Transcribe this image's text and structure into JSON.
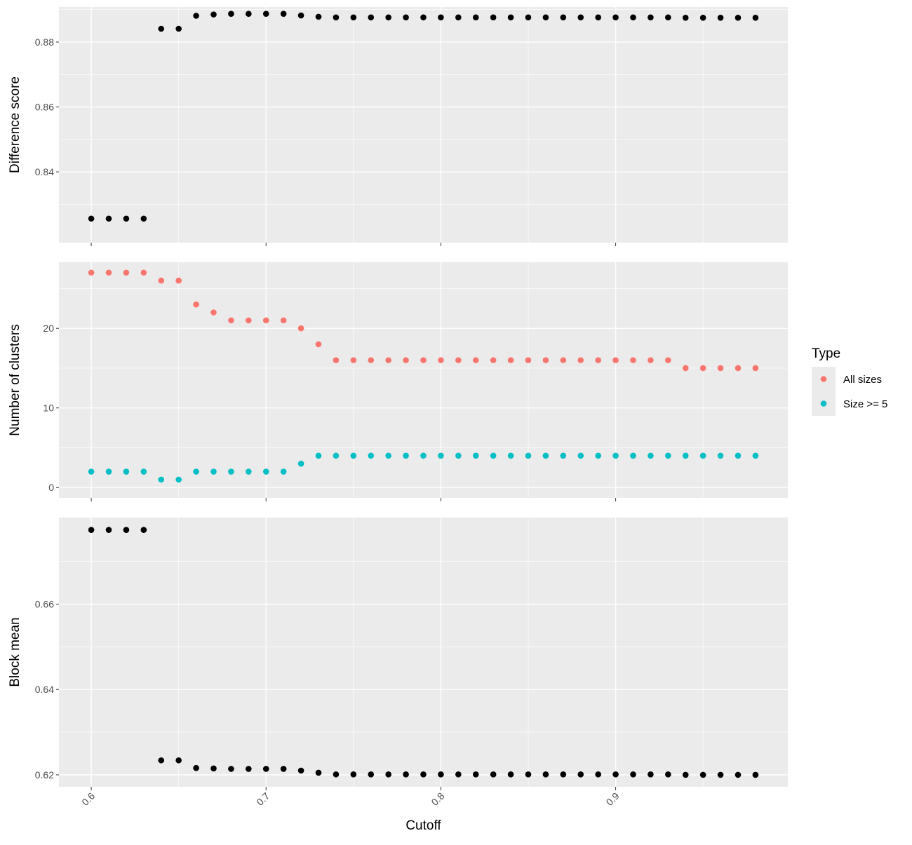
{
  "chart_data": {
    "type": "scatter",
    "layout": "three vertically stacked panels sharing the x axis",
    "xlabel": "Cutoff",
    "x_ticks": [
      0.6,
      0.7,
      0.8,
      0.9
    ],
    "x_tick_labels": [
      "0.6",
      "0.7",
      "0.8",
      "0.9"
    ],
    "xlim": [
      0.5815,
      0.9985
    ],
    "x": [
      0.6,
      0.61,
      0.62,
      0.63,
      0.64,
      0.65,
      0.66,
      0.67,
      0.68,
      0.69,
      0.7,
      0.71,
      0.72,
      0.73,
      0.74,
      0.75,
      0.76,
      0.77,
      0.78,
      0.79,
      0.8,
      0.81,
      0.82,
      0.83,
      0.84,
      0.85,
      0.86,
      0.87,
      0.88,
      0.89,
      0.9,
      0.91,
      0.92,
      0.93,
      0.94,
      0.95,
      0.96,
      0.97,
      0.98
    ],
    "grid": true,
    "legend": {
      "title": "Type",
      "position": "right",
      "entries": [
        {
          "label": "All sizes",
          "color": "#F8766D"
        },
        {
          "label": "Size >= 5",
          "color": "#00BFC4"
        }
      ]
    },
    "panels": [
      {
        "ylabel": "Difference score",
        "ylim": [
          0.8182,
          0.8908
        ],
        "y_ticks": [
          0.84,
          0.86,
          0.88
        ],
        "y_tick_labels": [
          "0.84",
          "0.86",
          "0.88"
        ],
        "series": [
          {
            "color": "#000000",
            "values": [
              0.8256,
              0.8256,
              0.8256,
              0.8256,
              0.8841,
              0.8841,
              0.8881,
              0.8885,
              0.8887,
              0.8887,
              0.8887,
              0.8887,
              0.8882,
              0.8878,
              0.8876,
              0.8876,
              0.8876,
              0.8876,
              0.8876,
              0.8876,
              0.8876,
              0.8876,
              0.8876,
              0.8876,
              0.8876,
              0.8876,
              0.8876,
              0.8876,
              0.8876,
              0.8876,
              0.8876,
              0.8876,
              0.8876,
              0.8876,
              0.8875,
              0.8875,
              0.8875,
              0.8875,
              0.8875
            ]
          }
        ]
      },
      {
        "ylabel": "Number of clusters",
        "ylim": [
          -1.3,
          28.3
        ],
        "y_ticks": [
          0,
          10,
          20
        ],
        "y_tick_labels": [
          "0",
          "10",
          "20"
        ],
        "series": [
          {
            "name": "All sizes",
            "color": "#F8766D",
            "values": [
              27,
              27,
              27,
              27,
              26,
              26,
              23,
              22,
              21,
              21,
              21,
              21,
              20,
              18,
              16,
              16,
              16,
              16,
              16,
              16,
              16,
              16,
              16,
              16,
              16,
              16,
              16,
              16,
              16,
              16,
              16,
              16,
              16,
              16,
              15,
              15,
              15,
              15,
              15
            ]
          },
          {
            "name": "Size >= 5",
            "color": "#00BFC4",
            "values": [
              2,
              2,
              2,
              2,
              1,
              1,
              2,
              2,
              2,
              2,
              2,
              2,
              3,
              4,
              4,
              4,
              4,
              4,
              4,
              4,
              4,
              4,
              4,
              4,
              4,
              4,
              4,
              4,
              4,
              4,
              4,
              4,
              4,
              4,
              4,
              4,
              4,
              4,
              4
            ]
          }
        ]
      },
      {
        "ylabel": "Block mean",
        "ylim": [
          0.6172,
          0.6803
        ],
        "y_ticks": [
          0.62,
          0.64,
          0.66
        ],
        "y_tick_labels": [
          "0.62",
          "0.64",
          "0.66"
        ],
        "series": [
          {
            "color": "#000000",
            "values": [
              0.6774,
              0.6774,
              0.6774,
              0.6774,
              0.6234,
              0.6234,
              0.6216,
              0.6215,
              0.6214,
              0.6214,
              0.6214,
              0.6214,
              0.621,
              0.6205,
              0.6201,
              0.6201,
              0.6201,
              0.6201,
              0.6201,
              0.6201,
              0.6201,
              0.6201,
              0.6201,
              0.6201,
              0.6201,
              0.6201,
              0.6201,
              0.6201,
              0.6201,
              0.6201,
              0.6201,
              0.6201,
              0.6201,
              0.6201,
              0.62,
              0.62,
              0.62,
              0.62,
              0.62
            ]
          }
        ]
      }
    ]
  }
}
